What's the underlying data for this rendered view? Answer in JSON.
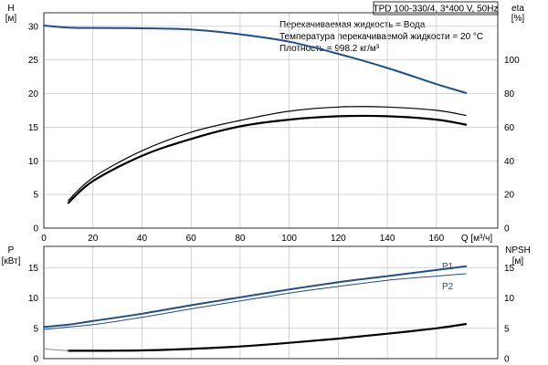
{
  "header": {
    "pump_label": "TPD 100-330/4, 3*400 V, 50Hz",
    "notes": [
      "Перекачиваемая жидкость = Вода",
      "Температура перекачиваемой жидкости = 20 °C",
      "Плотность = 998.2 кг/м³"
    ]
  },
  "colors": {
    "blue": "#1f4e8c",
    "black": "#000000",
    "grid": "#c8c8c8"
  },
  "chart_data": [
    {
      "type": "line",
      "panel": "top",
      "xlabel": "Q [м³/ч]",
      "xlim": [
        0,
        185
      ],
      "xticks": [
        0,
        20,
        40,
        60,
        80,
        100,
        120,
        140,
        160
      ],
      "left_axis": {
        "label_line1": "H",
        "label_line2": "[м]",
        "ylim": [
          0,
          32
        ],
        "ticks": [
          0,
          5,
          10,
          15,
          20,
          25,
          30
        ]
      },
      "right_axis": {
        "label_line1": "eta",
        "label_line2": "[%]",
        "ylim": [
          0,
          128
        ],
        "ticks": [
          0,
          20,
          40,
          60,
          80,
          100
        ]
      },
      "grid": true,
      "series": [
        {
          "axis": "left",
          "color": "#1f4e8c",
          "width": 2,
          "x": [
            0,
            10,
            20,
            40,
            60,
            80,
            100,
            120,
            140,
            160,
            172
          ],
          "y": [
            30.1,
            29.8,
            29.75,
            29.7,
            29.5,
            28.8,
            27.7,
            25.9,
            23.8,
            21.4,
            20.1
          ]
        },
        {
          "axis": "right",
          "color": "#000000",
          "width": 1.2,
          "x": [
            10,
            20,
            40,
            60,
            80,
            100,
            120,
            140,
            160,
            172
          ],
          "y": [
            16.5,
            30,
            46,
            57,
            64,
            69.5,
            72,
            72,
            70,
            67
          ]
        },
        {
          "axis": "right",
          "color": "#000000",
          "width": 2.2,
          "x": [
            10,
            20,
            40,
            60,
            80,
            100,
            120,
            140,
            160,
            172
          ],
          "y": [
            15,
            28,
            43,
            53,
            60.5,
            64.5,
            66.5,
            66.5,
            64.5,
            61.5
          ]
        }
      ]
    },
    {
      "type": "line",
      "panel": "bottom",
      "xlim": [
        0,
        185
      ],
      "xticks": [
        0,
        20,
        40,
        60,
        80,
        100,
        120,
        140,
        160
      ],
      "left_axis": {
        "label_line1": "P",
        "label_line2": "[кВт]",
        "ylim": [
          0,
          18.5
        ],
        "ticks": [
          0,
          5,
          10,
          15
        ]
      },
      "right_axis": {
        "label_line1": "NPSH",
        "label_line2": "[м]",
        "ylim": [
          0,
          18.5
        ],
        "ticks": [
          0,
          5,
          10,
          15
        ]
      },
      "grid": true,
      "series": [
        {
          "name": "P1",
          "axis": "left",
          "color": "#1f4e8c",
          "width": 2,
          "x": [
            0,
            10,
            20,
            40,
            60,
            80,
            100,
            120,
            140,
            160,
            172
          ],
          "y": [
            5.2,
            5.6,
            6.2,
            7.4,
            8.8,
            10.1,
            11.4,
            12.6,
            13.6,
            14.6,
            15.2
          ]
        },
        {
          "name": "P2",
          "axis": "left",
          "color": "#1f4e8c",
          "width": 1,
          "x": [
            0,
            10,
            20,
            40,
            60,
            80,
            100,
            120,
            140,
            160,
            172
          ],
          "y": [
            4.8,
            5.2,
            5.6,
            6.8,
            8.2,
            9.5,
            10.8,
            11.9,
            12.9,
            13.6,
            14.0
          ]
        },
        {
          "axis": "right",
          "color": "#000000",
          "width": 2.2,
          "x": [
            10,
            20,
            40,
            60,
            80,
            100,
            120,
            140,
            160,
            172
          ],
          "y": [
            1.3,
            1.3,
            1.35,
            1.6,
            2.0,
            2.6,
            3.3,
            4.1,
            5.0,
            5.7
          ]
        },
        {
          "axis": "right",
          "color": "#888888",
          "width": 1,
          "x": [
            0,
            10
          ],
          "y": [
            1.6,
            1.3
          ]
        }
      ]
    }
  ]
}
